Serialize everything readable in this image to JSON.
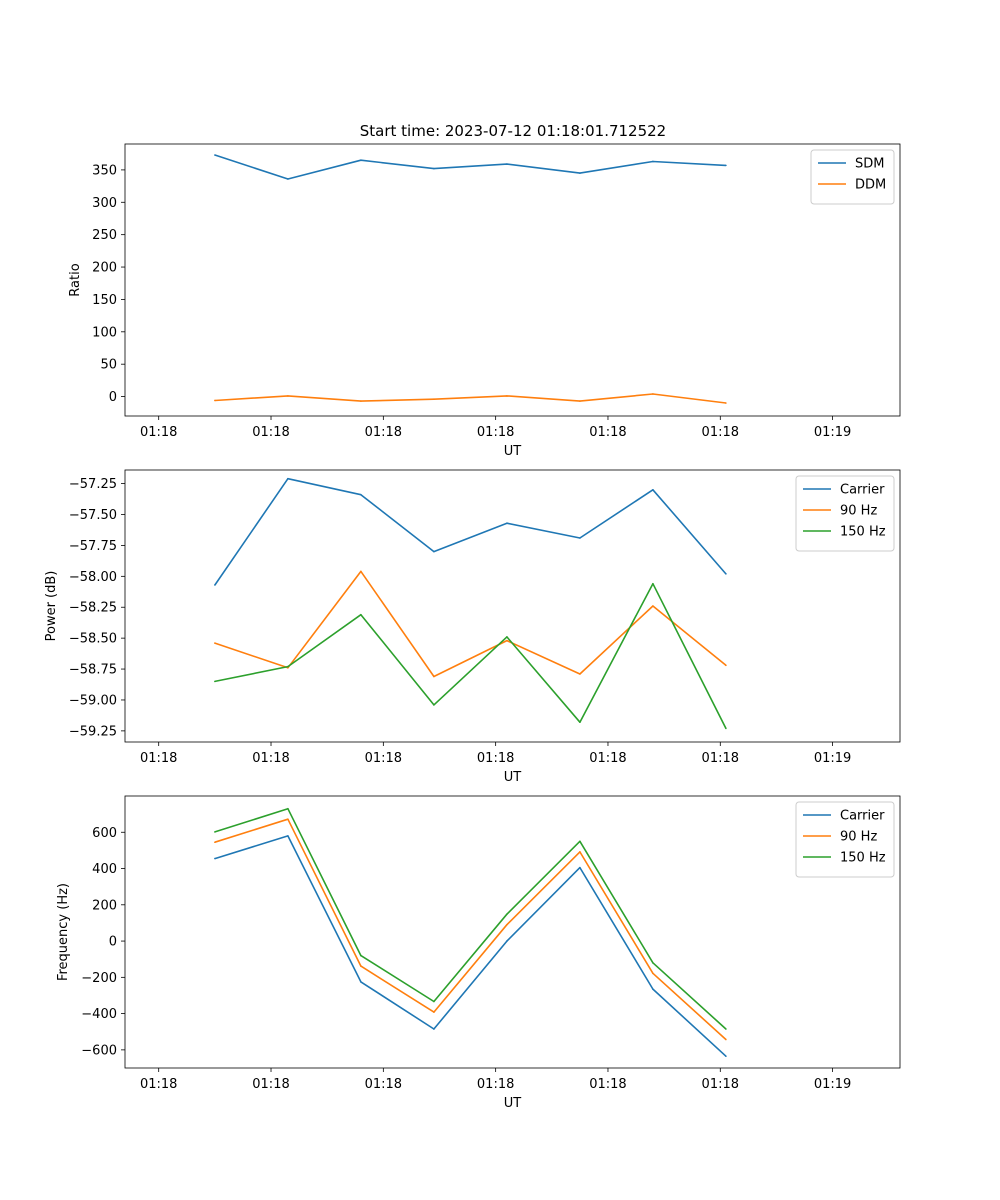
{
  "figure": {
    "title": "Start time: 2023-07-12 01:18:01.712522"
  },
  "chart_data": [
    {
      "type": "line",
      "name": "ratio",
      "title": "Start time: 2023-07-12 01:18:01.712522",
      "xlabel": "UT",
      "ylabel": "Ratio",
      "x_ticks": [
        "01:18",
        "01:18",
        "01:18",
        "01:18",
        "01:18",
        "01:18",
        "01:19"
      ],
      "ylim": [
        -30,
        390
      ],
      "yticks": [
        0,
        50,
        100,
        150,
        200,
        250,
        300,
        350
      ],
      "ytick_labels": [
        "0",
        "50",
        "100",
        "150",
        "200",
        "250",
        "300",
        "350"
      ],
      "legend": "top-right",
      "x": [
        0.5,
        1.15,
        1.8,
        2.45,
        3.1,
        3.75,
        4.4,
        5.05
      ],
      "series": [
        {
          "name": "SDM",
          "color": "#1f77b4",
          "values": [
            373,
            336,
            365,
            352,
            359,
            345,
            363,
            357
          ]
        },
        {
          "name": "DDM",
          "color": "#ff7f0e",
          "values": [
            -6,
            1,
            -7,
            -4,
            1,
            -7,
            4,
            -10
          ]
        }
      ]
    },
    {
      "type": "line",
      "name": "power",
      "xlabel": "UT",
      "ylabel": "Power (dB)",
      "x_ticks": [
        "01:18",
        "01:18",
        "01:18",
        "01:18",
        "01:18",
        "01:18",
        "01:19"
      ],
      "ylim": [
        -59.34,
        -57.14
      ],
      "yticks": [
        -59.25,
        -59.0,
        -58.75,
        -58.5,
        -58.25,
        -58.0,
        -57.75,
        -57.5,
        -57.25
      ],
      "ytick_labels": [
        "−59.25",
        "−59.00",
        "−58.75",
        "−58.50",
        "−58.25",
        "−58.00",
        "−57.75",
        "−57.50",
        "−57.25"
      ],
      "legend": "top-right",
      "x": [
        0.5,
        1.15,
        1.8,
        2.45,
        3.1,
        3.75,
        4.4,
        5.05
      ],
      "series": [
        {
          "name": "Carrier",
          "color": "#1f77b4",
          "values": [
            -58.07,
            -57.21,
            -57.34,
            -57.8,
            -57.57,
            -57.69,
            -57.3,
            -57.98
          ]
        },
        {
          "name": "90 Hz",
          "color": "#ff7f0e",
          "values": [
            -58.54,
            -58.74,
            -57.96,
            -58.81,
            -58.52,
            -58.79,
            -58.24,
            -58.72
          ]
        },
        {
          "name": "150 Hz",
          "color": "#2ca02c",
          "values": [
            -58.85,
            -58.73,
            -58.31,
            -59.04,
            -58.49,
            -59.18,
            -58.06,
            -59.23
          ]
        }
      ]
    },
    {
      "type": "line",
      "name": "frequency",
      "xlabel": "UT",
      "ylabel": "Frequency (Hz)",
      "x_ticks": [
        "01:18",
        "01:18",
        "01:18",
        "01:18",
        "01:18",
        "01:18",
        "01:19"
      ],
      "ylim": [
        -700,
        800
      ],
      "yticks": [
        -600,
        -400,
        -200,
        0,
        200,
        400,
        600
      ],
      "ytick_labels": [
        "−600",
        "−400",
        "−200",
        "0",
        "200",
        "400",
        "600"
      ],
      "legend": "top-right",
      "x": [
        0.5,
        1.15,
        1.8,
        2.45,
        3.1,
        3.75,
        4.4,
        5.05
      ],
      "series": [
        {
          "name": "Carrier",
          "color": "#1f77b4",
          "values": [
            455,
            580,
            -225,
            -485,
            0,
            405,
            -265,
            -635
          ]
        },
        {
          "name": "90 Hz",
          "color": "#ff7f0e",
          "values": [
            545,
            672,
            -138,
            -392,
            90,
            492,
            -178,
            -543
          ]
        },
        {
          "name": "150 Hz",
          "color": "#2ca02c",
          "values": [
            602,
            730,
            -80,
            -333,
            148,
            550,
            -120,
            -485
          ]
        }
      ]
    }
  ]
}
